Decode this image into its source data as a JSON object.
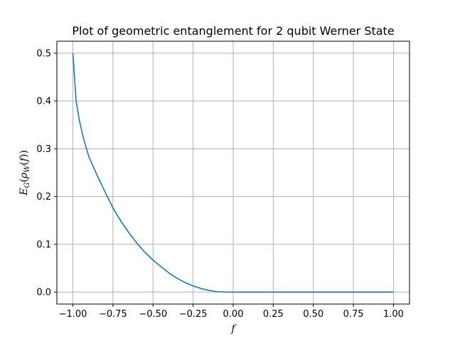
{
  "chart_data": {
    "type": "line",
    "title": "Plot of geometric entanglement for 2 qubit Werner State",
    "xlabel": "f",
    "ylabel_parts": {
      "E": "E",
      "G": "G",
      "open1": "(",
      "rho": "ρ",
      "W": "W",
      "open2": "(",
      "f": "f",
      "close": "))"
    },
    "xlim": [
      -1.1,
      1.1
    ],
    "ylim": [
      -0.025,
      0.525
    ],
    "xticks": [
      -1.0,
      -0.75,
      -0.5,
      -0.25,
      0.0,
      0.25,
      0.5,
      0.75,
      1.0
    ],
    "xtick_labels": [
      "−1.00",
      "−0.75",
      "−0.50",
      "−0.25",
      "0.00",
      "0.25",
      "0.50",
      "0.75",
      "1.00"
    ],
    "yticks": [
      0.0,
      0.1,
      0.2,
      0.3,
      0.4,
      0.5
    ],
    "ytick_labels": [
      "0.0",
      "0.1",
      "0.2",
      "0.3",
      "0.4",
      "0.5"
    ],
    "grid": true,
    "series": [
      {
        "color": "#1f77b4",
        "x": [
          -1.0,
          -0.98,
          -0.96,
          -0.94,
          -0.92,
          -0.9,
          -0.85,
          -0.8,
          -0.75,
          -0.7,
          -0.65,
          -0.6,
          -0.55,
          -0.5,
          -0.45,
          -0.4,
          -0.35,
          -0.3,
          -0.25,
          -0.2,
          -0.15,
          -0.1,
          -0.05,
          0.0,
          0.25,
          0.5,
          0.75,
          1.0
        ],
        "y": [
          0.5,
          0.4,
          0.36,
          0.33,
          0.305,
          0.283,
          0.245,
          0.21,
          0.176,
          0.148,
          0.124,
          0.102,
          0.083,
          0.067,
          0.053,
          0.04,
          0.029,
          0.02,
          0.013,
          0.0075,
          0.0035,
          0.001,
          0.0002,
          0.0,
          0.0,
          0.0,
          0.0,
          0.0
        ]
      }
    ]
  }
}
